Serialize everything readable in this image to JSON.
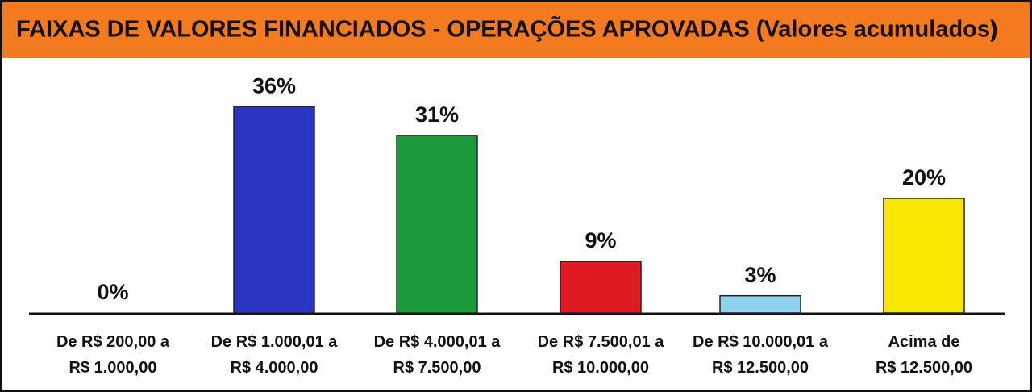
{
  "chart_data": {
    "type": "bar",
    "title": "FAIXAS DE VALORES FINANCIADOS - OPERAÇÕES APROVADAS (Valores acumulados)",
    "categories": [
      "De R$ 200,00 a\nR$ 1.000,00",
      "De R$ 1.000,01 a\nR$ 4.000,00",
      "De R$ 4.000,01 a\nR$ 7.500,00",
      "De R$ 7.500,01 a\nR$ 10.000,00",
      "De R$ 10.000,01 a\nR$ 12.500,00",
      "Acima de\nR$ 12.500,00"
    ],
    "values": [
      0,
      36,
      31,
      9,
      3,
      20
    ],
    "value_labels": [
      "0%",
      "36%",
      "31%",
      "9%",
      "3%",
      "20%"
    ],
    "colors": [
      "#1a1a1a",
      "#2b35c4",
      "#1a9a3a",
      "#e01b24",
      "#8ed3ee",
      "#f7e600"
    ]
  }
}
